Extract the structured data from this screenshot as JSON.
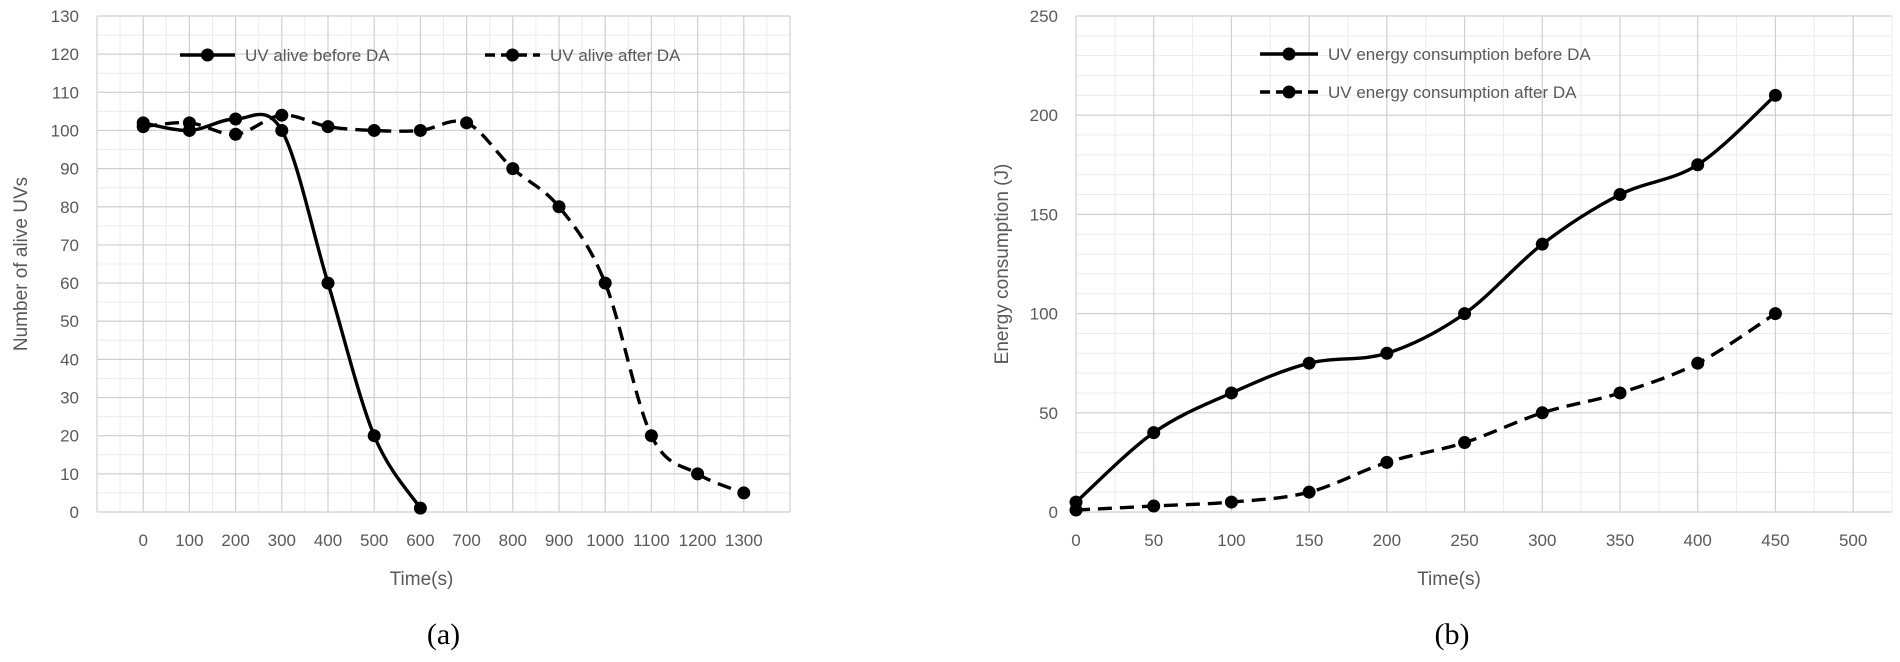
{
  "chart_data": [
    {
      "type": "line",
      "panel_label": "(a)",
      "title": "",
      "xlabel": "Time(s)",
      "ylabel": "Number of alive UVs",
      "xlim": [
        -100,
        1400
      ],
      "ylim": [
        0,
        130
      ],
      "x_ticks": [
        "0",
        "100",
        "200",
        "300",
        "400",
        "500",
        "600",
        "700",
        "800",
        "900",
        "1000",
        "1100",
        "1200",
        "1300"
      ],
      "y_ticks": [
        "0",
        "10",
        "20",
        "30",
        "40",
        "50",
        "60",
        "70",
        "80",
        "90",
        "100",
        "110",
        "120",
        "130"
      ],
      "grid": true,
      "legend_position": "top-center",
      "series": [
        {
          "name": "UV alive before DA",
          "style": "solid",
          "x": [
            0,
            100,
            200,
            300,
            400,
            500,
            600
          ],
          "y": [
            102,
            100,
            103,
            100,
            60,
            20,
            1
          ]
        },
        {
          "name": "UV alive after DA",
          "style": "dashed",
          "x": [
            0,
            100,
            200,
            300,
            400,
            500,
            600,
            700,
            800,
            900,
            1000,
            1100,
            1200,
            1300
          ],
          "y": [
            101,
            102,
            99,
            104,
            101,
            100,
            100,
            102,
            90,
            80,
            60,
            20,
            10,
            5
          ]
        }
      ]
    },
    {
      "type": "line",
      "panel_label": "(b)",
      "title": "",
      "xlabel": "Time(s)",
      "ylabel": "Energy consumption (J)",
      "xlim": [
        0,
        525
      ],
      "ylim": [
        0,
        250
      ],
      "x_ticks": [
        "0",
        "50",
        "100",
        "150",
        "200",
        "250",
        "300",
        "350",
        "400",
        "450",
        "500"
      ],
      "y_ticks": [
        "0",
        "50",
        "100",
        "150",
        "200",
        "250"
      ],
      "grid": true,
      "legend_position": "top-left",
      "series": [
        {
          "name": "UV energy consumption before DA",
          "style": "solid",
          "x": [
            0,
            50,
            100,
            150,
            200,
            250,
            300,
            350,
            400,
            450
          ],
          "y": [
            5,
            40,
            60,
            75,
            80,
            100,
            135,
            160,
            175,
            210
          ]
        },
        {
          "name": "UV energy consumption after DA",
          "style": "dashed",
          "x": [
            0,
            50,
            100,
            150,
            200,
            250,
            300,
            350,
            400,
            450
          ],
          "y": [
            1,
            3,
            5,
            10,
            25,
            35,
            50,
            60,
            75,
            100
          ]
        }
      ]
    }
  ]
}
